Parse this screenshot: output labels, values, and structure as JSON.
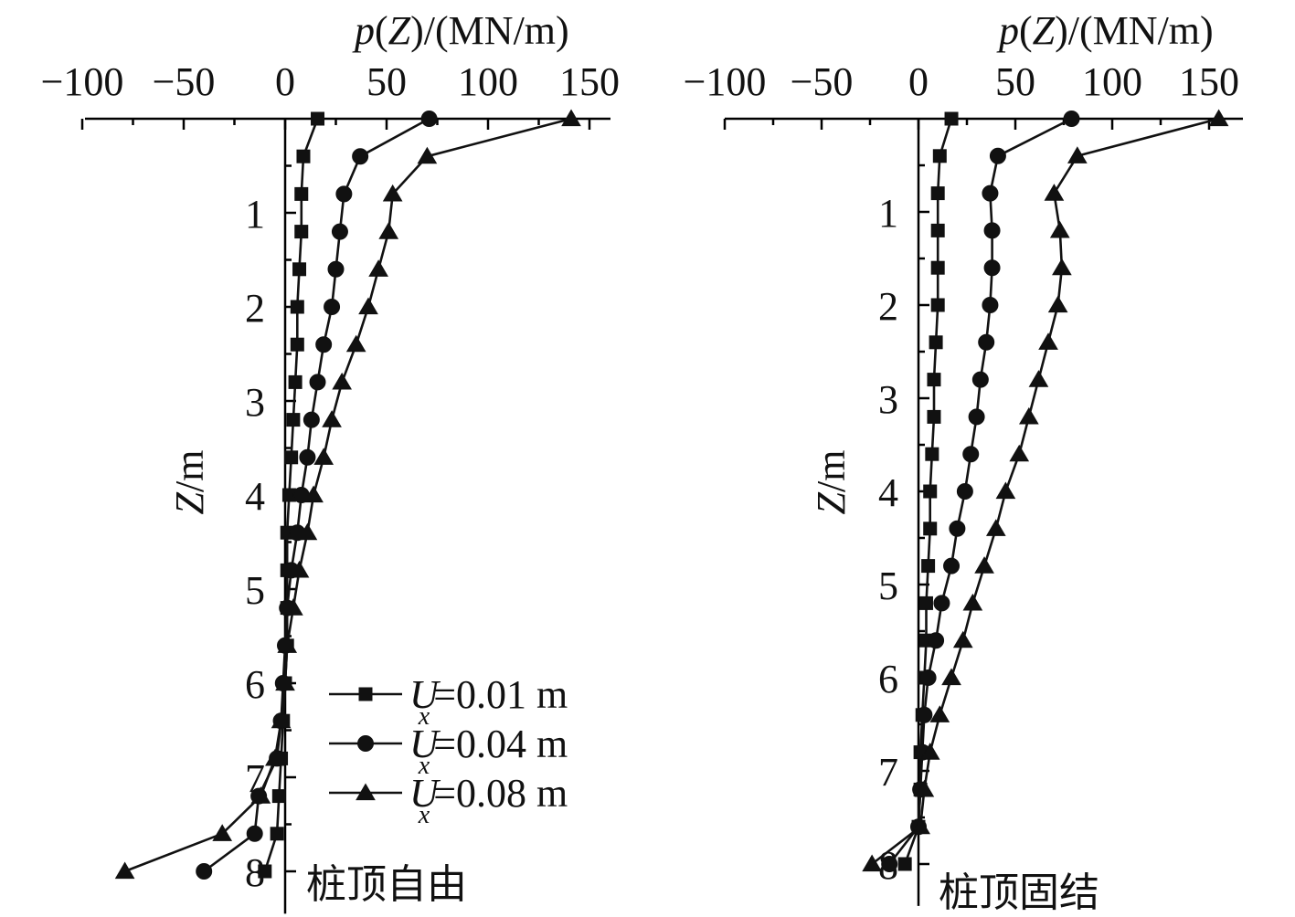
{
  "chart_data": [
    {
      "type": "line",
      "caption": "桩顶自由",
      "xlabel_parts": [
        "p",
        "(",
        "Z",
        ")/(MN/m)"
      ],
      "ylabel_parts": [
        "Z",
        "/m"
      ],
      "xlim": [
        -100,
        150
      ],
      "ylim": [
        0,
        8
      ],
      "x_tick_labels": [
        "−100",
        "−50",
        "0",
        "50",
        "100",
        "150"
      ],
      "x_ticks": [
        -100,
        -50,
        0,
        50,
        100,
        150
      ],
      "y_tick_labels": [
        "1",
        "2",
        "3",
        "4",
        "5",
        "6",
        "7",
        "8"
      ],
      "y_ticks": [
        1,
        2,
        3,
        4,
        5,
        6,
        7,
        8
      ],
      "legend": [
        {
          "prefix": "U",
          "subscript": "x",
          "suffix": "=0.01 m",
          "marker": "square"
        },
        {
          "prefix": "U",
          "subscript": "x",
          "suffix": "=0.04 m",
          "marker": "circle"
        },
        {
          "prefix": "U",
          "subscript": "x",
          "suffix": "=0.08 m",
          "marker": "triangle"
        }
      ],
      "series": [
        {
          "marker": "square",
          "points": [
            [
              16,
              0
            ],
            [
              9,
              0.4
            ],
            [
              8,
              0.8
            ],
            [
              8,
              1.2
            ],
            [
              7,
              1.6
            ],
            [
              6,
              2.0
            ],
            [
              6,
              2.4
            ],
            [
              5,
              2.8
            ],
            [
              4,
              3.2
            ],
            [
              3,
              3.6
            ],
            [
              2,
              4.0
            ],
            [
              1,
              4.4
            ],
            [
              1,
              4.8
            ],
            [
              1,
              5.2
            ],
            [
              1,
              5.6
            ],
            [
              0,
              6.0
            ],
            [
              -1,
              6.4
            ],
            [
              -2,
              6.8
            ],
            [
              -3,
              7.2
            ],
            [
              -4,
              7.6
            ],
            [
              -10,
              8.0
            ]
          ]
        },
        {
          "marker": "circle",
          "points": [
            [
              71,
              0
            ],
            [
              37,
              0.4
            ],
            [
              29,
              0.8
            ],
            [
              27,
              1.2
            ],
            [
              25,
              1.6
            ],
            [
              23,
              2.0
            ],
            [
              19,
              2.4
            ],
            [
              16,
              2.8
            ],
            [
              13,
              3.2
            ],
            [
              11,
              3.6
            ],
            [
              8,
              4.0
            ],
            [
              6,
              4.4
            ],
            [
              3,
              4.8
            ],
            [
              1,
              5.2
            ],
            [
              0,
              5.6
            ],
            [
              -1,
              6.0
            ],
            [
              -2,
              6.4
            ],
            [
              -4,
              6.8
            ],
            [
              -13,
              7.2
            ],
            [
              -15,
              7.6
            ],
            [
              -40,
              8.0
            ]
          ]
        },
        {
          "marker": "triangle",
          "points": [
            [
              141,
              0
            ],
            [
              70,
              0.4
            ],
            [
              53,
              0.8
            ],
            [
              51,
              1.2
            ],
            [
              46,
              1.6
            ],
            [
              41,
              2.0
            ],
            [
              35,
              2.4
            ],
            [
              28,
              2.8
            ],
            [
              23,
              3.2
            ],
            [
              19,
              3.6
            ],
            [
              14,
              4.0
            ],
            [
              11,
              4.4
            ],
            [
              7,
              4.8
            ],
            [
              4,
              5.2
            ],
            [
              1,
              5.6
            ],
            [
              0,
              6.0
            ],
            [
              -2,
              6.4
            ],
            [
              -5,
              6.8
            ],
            [
              -12,
              7.2
            ],
            [
              -31,
              7.6
            ],
            [
              -79,
              8.0
            ]
          ]
        }
      ]
    },
    {
      "type": "line",
      "caption": "桩顶固结",
      "xlabel_parts": [
        "p",
        "(",
        "Z",
        ")/(MN/m)"
      ],
      "ylabel_parts": [
        "Z",
        "/m"
      ],
      "xlim": [
        -100,
        150
      ],
      "ylim": [
        0,
        8
      ],
      "x_tick_labels": [
        "−100",
        "−50",
        "0",
        "50",
        "100",
        "150"
      ],
      "x_ticks": [
        -100,
        -50,
        0,
        50,
        100,
        150
      ],
      "y_tick_labels": [
        "1",
        "2",
        "3",
        "4",
        "5",
        "6",
        "7",
        "8"
      ],
      "y_ticks": [
        1,
        2,
        3,
        4,
        5,
        6,
        7,
        8
      ],
      "legend": [],
      "series": [
        {
          "marker": "square",
          "points": [
            [
              17,
              0
            ],
            [
              11,
              0.4
            ],
            [
              10,
              0.8
            ],
            [
              10,
              1.2
            ],
            [
              10,
              1.6
            ],
            [
              10,
              2.0
            ],
            [
              9,
              2.4
            ],
            [
              8,
              2.8
            ],
            [
              8,
              3.2
            ],
            [
              7,
              3.6
            ],
            [
              6,
              4.0
            ],
            [
              6,
              4.4
            ],
            [
              5,
              4.8
            ],
            [
              4,
              5.2
            ],
            [
              4,
              5.6
            ],
            [
              3,
              6.0
            ],
            [
              2,
              6.4
            ],
            [
              1,
              6.8
            ],
            [
              1,
              7.2
            ],
            [
              0,
              7.6
            ],
            [
              -7,
              8.0
            ]
          ]
        },
        {
          "marker": "circle",
          "points": [
            [
              79,
              0
            ],
            [
              41,
              0.4
            ],
            [
              37,
              0.8
            ],
            [
              38,
              1.2
            ],
            [
              38,
              1.6
            ],
            [
              37,
              2.0
            ],
            [
              35,
              2.4
            ],
            [
              32,
              2.8
            ],
            [
              30,
              3.2
            ],
            [
              27,
              3.6
            ],
            [
              24,
              4.0
            ],
            [
              20,
              4.4
            ],
            [
              17,
              4.8
            ],
            [
              12,
              5.2
            ],
            [
              9,
              5.6
            ],
            [
              5,
              6.0
            ],
            [
              3,
              6.4
            ],
            [
              2,
              6.8
            ],
            [
              1,
              7.2
            ],
            [
              0,
              7.6
            ],
            [
              -15,
              8.0
            ]
          ]
        },
        {
          "marker": "triangle",
          "points": [
            [
              155,
              0
            ],
            [
              82,
              0.4
            ],
            [
              70,
              0.8
            ],
            [
              73,
              1.2
            ],
            [
              74,
              1.6
            ],
            [
              72,
              2.0
            ],
            [
              67,
              2.4
            ],
            [
              62,
              2.8
            ],
            [
              57,
              3.2
            ],
            [
              52,
              3.6
            ],
            [
              45,
              4.0
            ],
            [
              40,
              4.4
            ],
            [
              34,
              4.8
            ],
            [
              28,
              5.2
            ],
            [
              23,
              5.6
            ],
            [
              17,
              6.0
            ],
            [
              11,
              6.4
            ],
            [
              6,
              6.8
            ],
            [
              3,
              7.2
            ],
            [
              1,
              7.6
            ],
            [
              -24,
              8.0
            ]
          ]
        }
      ]
    }
  ]
}
